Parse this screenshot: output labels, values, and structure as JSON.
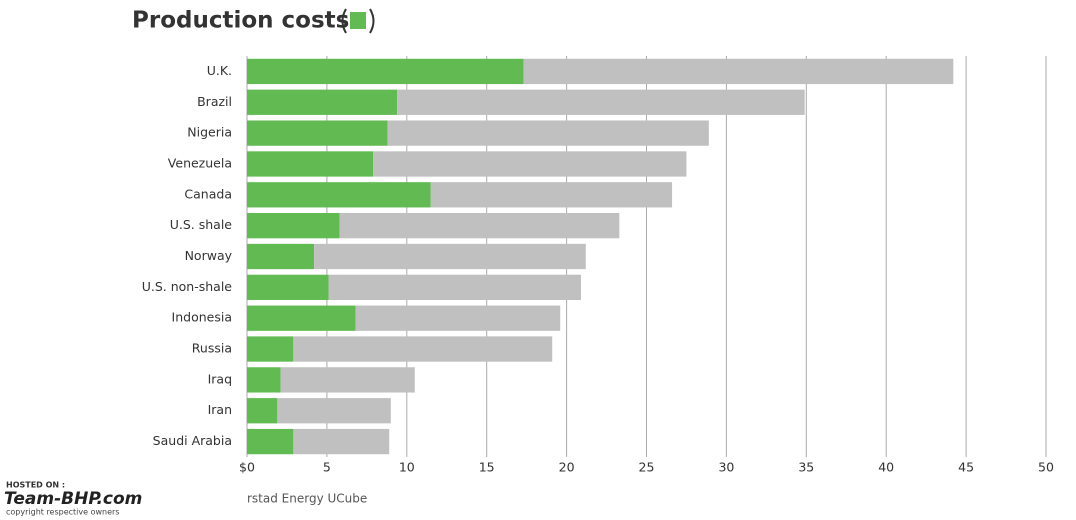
{
  "chart_data": {
    "type": "stacked-barh",
    "categories": [
      "U.K.",
      "Brazil",
      "Nigeria",
      "Venezuela",
      "Canada",
      "U.S. shale",
      "Norway",
      "U.S. non-shale",
      "Indonesia",
      "Russia",
      "Iraq",
      "Iran",
      "Saudi Arabia"
    ],
    "series": [
      {
        "name": "Production costs",
        "color": "#61bb52",
        "values": [
          17.3,
          9.4,
          8.8,
          7.9,
          11.5,
          5.8,
          4.2,
          5.1,
          6.8,
          2.9,
          2.1,
          1.9,
          2.9
        ]
      },
      {
        "color": "#c0c0c0",
        "values": [
          26.9,
          25.5,
          20.1,
          19.6,
          15.1,
          17.5,
          17.0,
          15.8,
          12.8,
          16.2,
          8.4,
          7.1,
          6.0
        ]
      }
    ],
    "xlim": [
      0,
      50
    ],
    "xticks": [
      {
        "value": 0,
        "label": "$0"
      },
      5,
      10,
      15,
      20,
      25,
      30,
      35,
      40,
      45,
      50
    ],
    "grid": true,
    "source": "rstad Energy UCube",
    "watermark": {
      "hosted": "HOSTED ON :",
      "site": "Team-BHP.com",
      "copyright": "copyright respective owners"
    }
  }
}
